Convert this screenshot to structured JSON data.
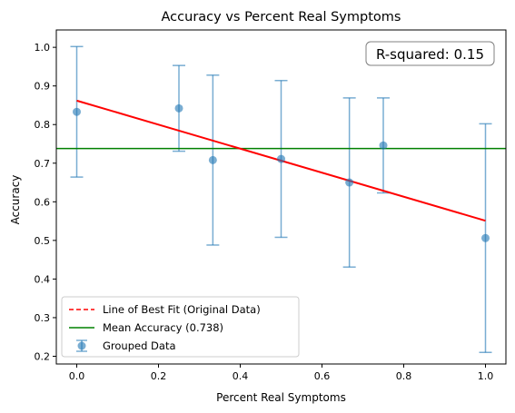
{
  "chart_data": {
    "type": "scatter",
    "title": "Accuracy vs Percent Real Symptoms",
    "xlabel": "Percent Real Symptoms",
    "ylabel": "Accuracy",
    "xlim": [
      -0.05,
      1.05
    ],
    "ylim": [
      0.18,
      1.045
    ],
    "xticks": [
      0.0,
      0.2,
      0.4,
      0.6,
      0.8,
      1.0
    ],
    "xtick_labels": [
      "0.0",
      "0.2",
      "0.4",
      "0.6",
      "0.8",
      "1.0"
    ],
    "yticks": [
      0.2,
      0.3,
      0.4,
      0.5,
      0.6,
      0.7,
      0.8,
      0.9,
      1.0
    ],
    "ytick_labels": [
      "0.2",
      "0.3",
      "0.4",
      "0.5",
      "0.6",
      "0.7",
      "0.8",
      "0.9",
      "1.0"
    ],
    "grid": false,
    "legend_position": "lower-left",
    "series": [
      {
        "name": "Grouped Data",
        "kind": "errorbar",
        "color": "#1f77b4",
        "x": [
          0.0,
          0.25,
          0.333,
          0.5,
          0.667,
          0.75,
          1.0
        ],
        "y": [
          0.833,
          0.842,
          0.708,
          0.711,
          0.65,
          0.746,
          0.506
        ],
        "yerr": [
          0.169,
          0.111,
          0.22,
          0.203,
          0.219,
          0.123,
          0.296
        ]
      },
      {
        "name": "Line of Best Fit (Original Data)",
        "kind": "line",
        "style": "dashed",
        "color": "#ff0000",
        "x": [
          0.0,
          1.0
        ],
        "y": [
          0.862,
          0.551
        ]
      },
      {
        "name": "Mean Accuracy (0.738)",
        "kind": "hline",
        "color": "#008000",
        "y": 0.738
      }
    ],
    "annotation": "R-squared: 0.15"
  }
}
